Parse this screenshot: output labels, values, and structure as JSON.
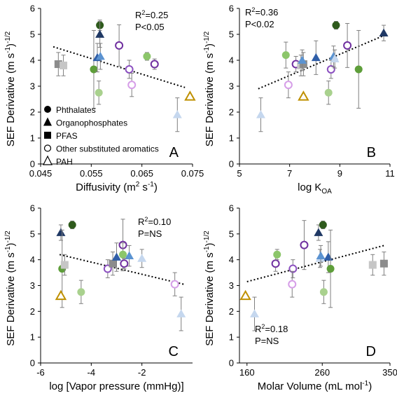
{
  "chart_data": [
    {
      "type": "scatter",
      "panel_label": "A",
      "ylabel": "SEF Derivative (m s⁻¹)⁻¹ᐟ²",
      "ylabel_main": "SEF Derivative (m s",
      "ylabel_sup1": "-1",
      "ylabel_mid": ")",
      "ylabel_sup2": "-1/2",
      "xlabel": "Diffusivity (m² s⁻¹)",
      "xlabel_main": "Diffusivity (m",
      "xlabel_sup": "2",
      "xlabel_tail": " s",
      "xlabel_sup2": "-1",
      "xlabel_end": ")",
      "xlim": [
        0.045,
        0.075
      ],
      "ylim": [
        0,
        6
      ],
      "xticks": [
        "0.045",
        "0.055",
        "0.065",
        "0.075"
      ],
      "xtick_values": [
        0.045,
        0.055,
        0.065,
        0.075
      ],
      "yticks": [
        "0",
        "1",
        "2",
        "3",
        "4",
        "5",
        "6"
      ],
      "stats": [
        "R2=0.25",
        "P<0.05"
      ],
      "stats_r": "R",
      "stats_sup": "2",
      "stats_rval": "=0.25",
      "stats_p": "P<0.05",
      "stats_position": "top-right",
      "trend": [
        [
          0.0475,
          4.52
        ],
        [
          0.0735,
          2.95
        ]
      ],
      "legend": [
        {
          "marker": "circle-filled",
          "label": "Phthalates"
        },
        {
          "marker": "triangle-filled",
          "label": "Organophosphates"
        },
        {
          "marker": "square-filled",
          "label": "PFAS"
        },
        {
          "marker": "circle-open",
          "label": "Other substituted aromatics"
        },
        {
          "marker": "triangle-open",
          "label": "PAH"
        }
      ],
      "points": [
        {
          "x": 0.0485,
          "y": 3.85,
          "err": 0.45,
          "shape": "square",
          "color": "#8c8c8c",
          "fill": true
        },
        {
          "x": 0.0495,
          "y": 3.8,
          "err": 0.4,
          "shape": "square",
          "color": "#c6c6c6",
          "fill": true
        },
        {
          "x": 0.0555,
          "y": 3.65,
          "err": 1.5,
          "shape": "circle",
          "color": "#5e9e3a",
          "fill": true
        },
        {
          "x": 0.0562,
          "y": 4.1,
          "err": 0.55,
          "shape": "triangle",
          "color": "#2f5ea8",
          "fill": true
        },
        {
          "x": 0.0568,
          "y": 4.15,
          "err": 0.5,
          "shape": "triangle",
          "color": "#5b93d1",
          "fill": true
        },
        {
          "x": 0.0567,
          "y": 5.35,
          "err": 0.2,
          "shape": "circle",
          "color": "#2e5a1c",
          "fill": true
        },
        {
          "x": 0.0567,
          "y": 5.0,
          "err": 0.5,
          "shape": "triangle",
          "color": "#1f3864",
          "fill": true
        },
        {
          "x": 0.0565,
          "y": 2.75,
          "err": 0.45,
          "shape": "circle",
          "color": "#a9d18e",
          "fill": true
        },
        {
          "x": 0.0605,
          "y": 4.57,
          "err": 0.8,
          "shape": "circle",
          "color": "#7030a0",
          "fill": false
        },
        {
          "x": 0.0625,
          "y": 3.65,
          "err": 0.35,
          "shape": "circle",
          "color": "#8b4fc0",
          "fill": false
        },
        {
          "x": 0.063,
          "y": 3.05,
          "err": 0.45,
          "shape": "circle",
          "color": "#d69ee8",
          "fill": false
        },
        {
          "x": 0.066,
          "y": 4.15,
          "err": 0.15,
          "shape": "circle",
          "color": "#8cc66a",
          "fill": true
        },
        {
          "x": 0.0675,
          "y": 3.85,
          "err": 0.2,
          "shape": "circle",
          "color": "#7030a0",
          "fill": false
        },
        {
          "x": 0.072,
          "y": 1.9,
          "err": 0.65,
          "shape": "triangle",
          "color": "#c5d7ee",
          "fill": true
        },
        {
          "x": 0.0745,
          "y": 2.6,
          "err": 0,
          "shape": "triangle",
          "color": "#bf9000",
          "fill": false
        }
      ]
    },
    {
      "type": "scatter",
      "panel_label": "B",
      "ylabel": "SEF Derivative (m s⁻¹)⁻¹ᐟ²",
      "ylabel_main": "SEF Derivative (m s",
      "ylabel_sup1": "-1",
      "ylabel_mid": ")",
      "ylabel_sup2": "-1/2",
      "xlabel": "log KOA",
      "xlabel_main": "log K",
      "xlabel_sub": "OA",
      "xlim": [
        5,
        11
      ],
      "ylim": [
        0,
        6
      ],
      "xticks": [
        "5",
        "7",
        "9",
        "11"
      ],
      "xtick_values": [
        5,
        7,
        9,
        11
      ],
      "yticks": [
        "0",
        "1",
        "2",
        "3",
        "4",
        "5",
        "6"
      ],
      "stats": [
        "R2=0.36",
        "P<0.02"
      ],
      "stats_r": "R",
      "stats_sup": "2",
      "stats_rval": "=0.36",
      "stats_p": "P<0.02",
      "stats_position": "top-left",
      "trend": [
        [
          5.75,
          2.9
        ],
        [
          10.75,
          4.95
        ]
      ],
      "points": [
        {
          "x": 5.85,
          "y": 1.9,
          "err": 0.65,
          "shape": "triangle",
          "color": "#c5d7ee",
          "fill": true
        },
        {
          "x": 6.85,
          "y": 4.2,
          "err": 0.5,
          "shape": "circle",
          "color": "#8cc66a",
          "fill": true
        },
        {
          "x": 6.95,
          "y": 3.05,
          "err": 0.5,
          "shape": "circle",
          "color": "#d69ee8",
          "fill": false
        },
        {
          "x": 7.25,
          "y": 3.85,
          "err": 0.3,
          "shape": "circle",
          "color": "#7030a0",
          "fill": false
        },
        {
          "x": 7.45,
          "y": 3.8,
          "err": 0.4,
          "shape": "square",
          "color": "#c6c6c6",
          "fill": true
        },
        {
          "x": 7.55,
          "y": 3.85,
          "err": 0.45,
          "shape": "square",
          "color": "#8c8c8c",
          "fill": true
        },
        {
          "x": 7.5,
          "y": 4.0,
          "err": 0.4,
          "shape": "triangle",
          "color": "#5b93d1",
          "fill": true
        },
        {
          "x": 7.55,
          "y": 2.6,
          "err": 0,
          "shape": "triangle",
          "color": "#bf9000",
          "fill": false
        },
        {
          "x": 8.05,
          "y": 4.1,
          "err": 0.65,
          "shape": "triangle",
          "color": "#2f5ea8",
          "fill": true
        },
        {
          "x": 8.55,
          "y": 2.75,
          "err": 0.45,
          "shape": "circle",
          "color": "#a9d18e",
          "fill": true
        },
        {
          "x": 8.65,
          "y": 3.65,
          "err": 0.35,
          "shape": "circle",
          "color": "#8b4fc0",
          "fill": false
        },
        {
          "x": 8.75,
          "y": 4.15,
          "err": 0.4,
          "shape": "triangle",
          "color": "#5b93d1",
          "fill": true
        },
        {
          "x": 8.8,
          "y": 4.05,
          "err": 0.35,
          "shape": "triangle",
          "color": "#c5d7ee",
          "fill": true
        },
        {
          "x": 8.85,
          "y": 5.35,
          "err": 0.15,
          "shape": "circle",
          "color": "#2e5a1c",
          "fill": true
        },
        {
          "x": 9.3,
          "y": 4.57,
          "err": 0.85,
          "shape": "circle",
          "color": "#7030a0",
          "fill": false
        },
        {
          "x": 9.75,
          "y": 3.65,
          "err": 1.5,
          "shape": "circle",
          "color": "#5e9e3a",
          "fill": true
        },
        {
          "x": 10.75,
          "y": 5.05,
          "err": 0.3,
          "shape": "triangle",
          "color": "#1f3864",
          "fill": true
        }
      ]
    },
    {
      "type": "scatter",
      "panel_label": "C",
      "ylabel": "SEF Derivative (m s⁻¹)⁻¹ᐟ²",
      "ylabel_main": "SEF Derivative (m s",
      "ylabel_sup1": "-1",
      "ylabel_mid": ")",
      "ylabel_sup2": "-1/2",
      "xlabel": "log [Vapor pressure (mmHg)]",
      "xlim": [
        -6,
        0
      ],
      "ylim": [
        0,
        6
      ],
      "xticks": [
        "-6",
        "-4",
        "-2"
      ],
      "xtick_values": [
        -6,
        -4,
        -2
      ],
      "yticks": [
        "0",
        "1",
        "2",
        "3",
        "4",
        "5",
        "6"
      ],
      "stats": [
        "R2=0.10",
        "P=NS"
      ],
      "stats_r": "R",
      "stats_sup": "2",
      "stats_rval": "=0.10",
      "stats_p": "P=NS",
      "stats_position": "top-right",
      "trend": [
        [
          -5.25,
          4.2
        ],
        [
          -0.35,
          3.05
        ]
      ],
      "points": [
        {
          "x": -5.2,
          "y": 5.05,
          "err": 0.3,
          "shape": "triangle",
          "color": "#1f3864",
          "fill": true
        },
        {
          "x": -5.15,
          "y": 3.65,
          "err": 1.5,
          "shape": "circle",
          "color": "#5e9e3a",
          "fill": true
        },
        {
          "x": -5.05,
          "y": 3.8,
          "err": 0.4,
          "shape": "square",
          "color": "#c6c6c6",
          "fill": true
        },
        {
          "x": -5.2,
          "y": 2.6,
          "err": 0,
          "shape": "triangle",
          "color": "#bf9000",
          "fill": false
        },
        {
          "x": -4.75,
          "y": 5.35,
          "err": 0.15,
          "shape": "circle",
          "color": "#2e5a1c",
          "fill": true
        },
        {
          "x": -4.4,
          "y": 2.75,
          "err": 0.45,
          "shape": "circle",
          "color": "#a9d18e",
          "fill": true
        },
        {
          "x": -3.35,
          "y": 3.65,
          "err": 0.35,
          "shape": "circle",
          "color": "#8b4fc0",
          "fill": false
        },
        {
          "x": -3.15,
          "y": 3.85,
          "err": 0.45,
          "shape": "square",
          "color": "#8c8c8c",
          "fill": true
        },
        {
          "x": -3.0,
          "y": 4.1,
          "err": 0.55,
          "shape": "triangle",
          "color": "#2f5ea8",
          "fill": true
        },
        {
          "x": -2.75,
          "y": 4.57,
          "err": 1.0,
          "shape": "circle",
          "color": "#7030a0",
          "fill": false
        },
        {
          "x": -2.75,
          "y": 4.2,
          "err": 0.45,
          "shape": "circle",
          "color": "#8cc66a",
          "fill": true
        },
        {
          "x": -2.5,
          "y": 4.15,
          "err": 0.4,
          "shape": "triangle",
          "color": "#5b93d1",
          "fill": true
        },
        {
          "x": -2.7,
          "y": 3.85,
          "err": 0.2,
          "shape": "circle",
          "color": "#7030a0",
          "fill": false
        },
        {
          "x": -2.0,
          "y": 4.05,
          "err": 0.35,
          "shape": "triangle",
          "color": "#c5d7ee",
          "fill": true
        },
        {
          "x": -0.7,
          "y": 3.05,
          "err": 0.45,
          "shape": "circle",
          "color": "#d69ee8",
          "fill": false
        },
        {
          "x": -0.45,
          "y": 1.9,
          "err": 0.65,
          "shape": "triangle",
          "color": "#c5d7ee",
          "fill": true
        }
      ]
    },
    {
      "type": "scatter",
      "panel_label": "D",
      "ylabel": "SEF Derivative (m s⁻¹)⁻¹ᐟ²",
      "ylabel_main": "SEF Derivative (m s",
      "ylabel_sup1": "-1",
      "ylabel_mid": ")",
      "ylabel_sup2": "-1/2",
      "xlabel": "Molar Volume (mL mol⁻¹)",
      "xlabel_main": "Molar Volume (mL mol",
      "xlabel_sup": "-1",
      "xlabel_end": ")",
      "xlim": [
        150,
        350
      ],
      "ylim": [
        0,
        6
      ],
      "xticks": [
        "160",
        "260",
        "350"
      ],
      "xtick_values": [
        160,
        260,
        350
      ],
      "yticks": [
        "0",
        "1",
        "2",
        "3",
        "4",
        "5",
        "6"
      ],
      "stats": [
        "R2=0.18",
        "P=NS"
      ],
      "stats_r": "R",
      "stats_sup": "2",
      "stats_rval": "=0.18",
      "stats_p": "P=NS",
      "stats_position": "bottom-left",
      "trend": [
        [
          160,
          3.15
        ],
        [
          342,
          4.55
        ]
      ],
      "points": [
        {
          "x": 158,
          "y": 2.6,
          "err": 0,
          "shape": "triangle",
          "color": "#bf9000",
          "fill": false
        },
        {
          "x": 170,
          "y": 1.9,
          "err": 0.65,
          "shape": "triangle",
          "color": "#c5d7ee",
          "fill": true
        },
        {
          "x": 198,
          "y": 3.85,
          "err": 0.3,
          "shape": "circle",
          "color": "#7030a0",
          "fill": false
        },
        {
          "x": 200,
          "y": 4.2,
          "err": 0.2,
          "shape": "circle",
          "color": "#8cc66a",
          "fill": true
        },
        {
          "x": 221,
          "y": 3.65,
          "err": 0.35,
          "shape": "circle",
          "color": "#8b4fc0",
          "fill": false
        },
        {
          "x": 220,
          "y": 3.05,
          "err": 0.5,
          "shape": "circle",
          "color": "#d69ee8",
          "fill": false
        },
        {
          "x": 236,
          "y": 4.57,
          "err": 0.95,
          "shape": "circle",
          "color": "#7030a0",
          "fill": false
        },
        {
          "x": 255,
          "y": 5.05,
          "err": 0.3,
          "shape": "triangle",
          "color": "#1f3864",
          "fill": true
        },
        {
          "x": 257,
          "y": 4.05,
          "err": 0.35,
          "shape": "triangle",
          "color": "#c5d7ee",
          "fill": true
        },
        {
          "x": 258,
          "y": 4.15,
          "err": 0.4,
          "shape": "triangle",
          "color": "#5b93d1",
          "fill": true
        },
        {
          "x": 261,
          "y": 5.35,
          "err": 0.15,
          "shape": "circle",
          "color": "#2e5a1c",
          "fill": true
        },
        {
          "x": 262,
          "y": 2.75,
          "err": 0.45,
          "shape": "circle",
          "color": "#a9d18e",
          "fill": true
        },
        {
          "x": 268,
          "y": 4.1,
          "err": 0.6,
          "shape": "triangle",
          "color": "#2f5ea8",
          "fill": true
        },
        {
          "x": 271,
          "y": 3.65,
          "err": 1.5,
          "shape": "circle",
          "color": "#5e9e3a",
          "fill": true
        },
        {
          "x": 327,
          "y": 3.8,
          "err": 0.4,
          "shape": "square",
          "color": "#c6c6c6",
          "fill": true
        },
        {
          "x": 342,
          "y": 3.85,
          "err": 0.45,
          "shape": "square",
          "color": "#8c8c8c",
          "fill": true
        }
      ]
    }
  ]
}
